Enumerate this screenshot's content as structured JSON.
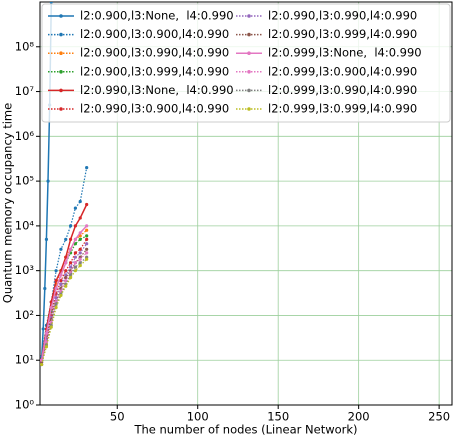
{
  "chart_data": {
    "type": "line",
    "xlabel": "The number of nodes (Linear Network)",
    "ylabel": "Quantum memory occupancy time",
    "xlim": [
      2,
      258
    ],
    "xticks": [
      50,
      100,
      150,
      200,
      250
    ],
    "ylim": [
      1,
      1000000000
    ],
    "log_y": true,
    "grid": true,
    "legend": "upper left",
    "yticks": [
      {
        "value": 1,
        "label": "10⁰"
      },
      {
        "value": 10,
        "label": "10¹"
      },
      {
        "value": 100,
        "label": "10²"
      },
      {
        "value": 1000,
        "label": "10³"
      },
      {
        "value": 10000,
        "label": "10⁴"
      },
      {
        "value": 100000,
        "label": "10⁵"
      },
      {
        "value": 1000000,
        "label": "10⁶"
      },
      {
        "value": 10000000,
        "label": "10⁷"
      },
      {
        "value": 100000000,
        "label": "10⁸"
      }
    ],
    "series": [
      {
        "name": "l2:0.900,l3:None,  l4:0.990",
        "color": "#1f77b4",
        "dashed": false,
        "x": [
          3,
          4,
          5,
          6,
          7,
          8,
          9
        ],
        "values": [
          10,
          50,
          400,
          5000,
          100000,
          5000000,
          1000000000
        ]
      },
      {
        "name": "l2:0.900,l3:0.900,l4:0.990",
        "color": "#1f77b4",
        "dashed": true,
        "x": [
          3,
          6,
          9,
          12,
          15,
          18,
          21,
          24,
          27,
          31
        ],
        "values": [
          12,
          60,
          200,
          1000,
          3000,
          5000,
          10000,
          25000,
          35000,
          200000
        ]
      },
      {
        "name": "l2:0.900,l3:0.990,l4:0.990",
        "color": "#ff7f0e",
        "dashed": true,
        "x": [
          3,
          6,
          9,
          12,
          15,
          18,
          21,
          24,
          27,
          31
        ],
        "values": [
          10,
          40,
          150,
          500,
          1000,
          2000,
          3000,
          5000,
          6000,
          8000
        ]
      },
      {
        "name": "l2:0.900,l3:0.999,l4:0.990",
        "color": "#2ca02c",
        "dashed": true,
        "x": [
          3,
          6,
          9,
          12,
          15,
          18,
          21,
          24,
          27,
          31
        ],
        "values": [
          10,
          35,
          120,
          400,
          800,
          1500,
          2500,
          4000,
          5000,
          6000
        ]
      },
      {
        "name": "l2:0.990,l3:None,  l4:0.990",
        "color": "#d62728",
        "dashed": false,
        "x": [
          3,
          6,
          9,
          12,
          15,
          18,
          21,
          24,
          27,
          31
        ],
        "values": [
          10,
          50,
          200,
          600,
          1000,
          2000,
          5000,
          10000,
          15000,
          30000
        ]
      },
      {
        "name": "l2:0.990,l3:0.900,l4:0.990",
        "color": "#d62728",
        "dashed": true,
        "x": [
          3,
          6,
          9,
          12,
          15,
          18,
          21,
          24,
          27,
          31
        ],
        "values": [
          10,
          30,
          100,
          300,
          600,
          1000,
          1500,
          2500,
          3000,
          5000
        ]
      },
      {
        "name": "l2:0.990,l3:0.990,l4:0.990",
        "color": "#9467bd",
        "dashed": true,
        "x": [
          3,
          6,
          9,
          12,
          15,
          18,
          21,
          24,
          27,
          31
        ],
        "values": [
          9,
          30,
          90,
          250,
          500,
          800,
          1200,
          2000,
          2500,
          4000
        ]
      },
      {
        "name": "l2:0.990,l3:0.999,l4:0.990",
        "color": "#8c564b",
        "dashed": true,
        "x": [
          3,
          6,
          9,
          12,
          15,
          18,
          21,
          24,
          27,
          31
        ],
        "values": [
          9,
          25,
          80,
          200,
          400,
          700,
          1000,
          1500,
          2000,
          3000
        ]
      },
      {
        "name": "l2:0.999,l3:None,  l4:0.990",
        "color": "#e377c2",
        "dashed": false,
        "x": [
          3,
          6,
          9,
          12,
          15,
          18,
          21,
          24,
          27,
          31
        ],
        "values": [
          10,
          40,
          150,
          400,
          800,
          1500,
          3000,
          5000,
          7000,
          10000
        ]
      },
      {
        "name": "l2:0.999,l3:0.900,l4:0.990",
        "color": "#e377c2",
        "dashed": true,
        "x": [
          3,
          6,
          9,
          12,
          15,
          18,
          21,
          24,
          27,
          31
        ],
        "values": [
          8,
          25,
          70,
          200,
          350,
          600,
          900,
          1500,
          1800,
          2500
        ]
      },
      {
        "name": "l2:0.999,l3:0.990,l4:0.990",
        "color": "#7f7f7f",
        "dashed": true,
        "x": [
          3,
          6,
          9,
          12,
          15,
          18,
          21,
          24,
          27,
          31
        ],
        "values": [
          8,
          22,
          60,
          180,
          300,
          500,
          800,
          1200,
          1500,
          2000
        ]
      },
      {
        "name": "l2:0.999,l3:0.999,l4:0.990",
        "color": "#bcbd22",
        "dashed": true,
        "x": [
          3,
          6,
          9,
          12,
          15,
          18,
          21,
          24,
          27,
          31
        ],
        "values": [
          8,
          20,
          55,
          150,
          280,
          450,
          700,
          1000,
          1300,
          1800
        ]
      }
    ]
  }
}
